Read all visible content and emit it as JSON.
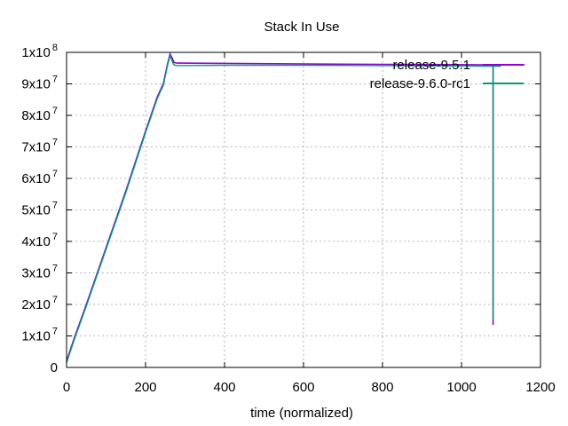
{
  "chart_data": {
    "type": "line",
    "title": "Stack In Use",
    "xlabel": "time (normalized)",
    "ylabel": "",
    "xlim": [
      0,
      1200
    ],
    "ylim": [
      0,
      100000000
    ],
    "grid": true,
    "legend_position": "top-right",
    "x_ticks": [
      0,
      200,
      400,
      600,
      800,
      1000,
      1200
    ],
    "x_tick_labels": [
      "0",
      "200",
      "400",
      "600",
      "800",
      "1000",
      "1200"
    ],
    "y_ticks": [
      0,
      10000000,
      20000000,
      30000000,
      40000000,
      50000000,
      60000000,
      70000000,
      80000000,
      90000000,
      100000000
    ],
    "y_tick_labels": [
      {
        "mantissa": "0",
        "exponent": ""
      },
      {
        "mantissa": "1x10",
        "exponent": "7"
      },
      {
        "mantissa": "2x10",
        "exponent": "7"
      },
      {
        "mantissa": "3x10",
        "exponent": "7"
      },
      {
        "mantissa": "4x10",
        "exponent": "7"
      },
      {
        "mantissa": "5x10",
        "exponent": "7"
      },
      {
        "mantissa": "6x10",
        "exponent": "7"
      },
      {
        "mantissa": "7x10",
        "exponent": "7"
      },
      {
        "mantissa": "8x10",
        "exponent": "7"
      },
      {
        "mantissa": "9x10",
        "exponent": "7"
      },
      {
        "mantissa": "1x10",
        "exponent": "8"
      }
    ],
    "series": [
      {
        "name": "release-9.5.1",
        "color": "#9400d3",
        "points": [
          [
            0,
            2000000
          ],
          [
            20,
            9500000
          ],
          [
            50,
            20000000
          ],
          [
            100,
            38000000
          ],
          [
            150,
            56000000
          ],
          [
            200,
            75000000
          ],
          [
            230,
            86000000
          ],
          [
            245,
            90000000
          ],
          [
            255,
            96000000
          ],
          [
            262,
            99500000
          ],
          [
            268,
            98000000
          ],
          [
            272,
            96800000
          ],
          [
            280,
            96600000
          ],
          [
            400,
            96500000
          ],
          [
            600,
            96300000
          ],
          [
            800,
            96200000
          ],
          [
            1000,
            96100000
          ],
          [
            1080,
            96000000
          ],
          [
            1080,
            13500000
          ],
          [
            1080,
            96000000
          ],
          [
            1160,
            96000000
          ]
        ]
      },
      {
        "name": "release-9.6.0-rc1",
        "color": "#009e73",
        "points": [
          [
            0,
            1500000
          ],
          [
            20,
            9000000
          ],
          [
            50,
            19500000
          ],
          [
            100,
            37500000
          ],
          [
            150,
            55500000
          ],
          [
            200,
            74500000
          ],
          [
            230,
            85500000
          ],
          [
            245,
            89500000
          ],
          [
            255,
            95500000
          ],
          [
            262,
            99000000
          ],
          [
            268,
            97000000
          ],
          [
            272,
            96000000
          ],
          [
            280,
            95800000
          ],
          [
            400,
            95900000
          ],
          [
            600,
            95900000
          ],
          [
            800,
            95800000
          ],
          [
            1000,
            95700000
          ],
          [
            1080,
            95600000
          ],
          [
            1080,
            15000000
          ],
          [
            1080,
            95600000
          ],
          [
            1100,
            95600000
          ]
        ]
      }
    ]
  }
}
